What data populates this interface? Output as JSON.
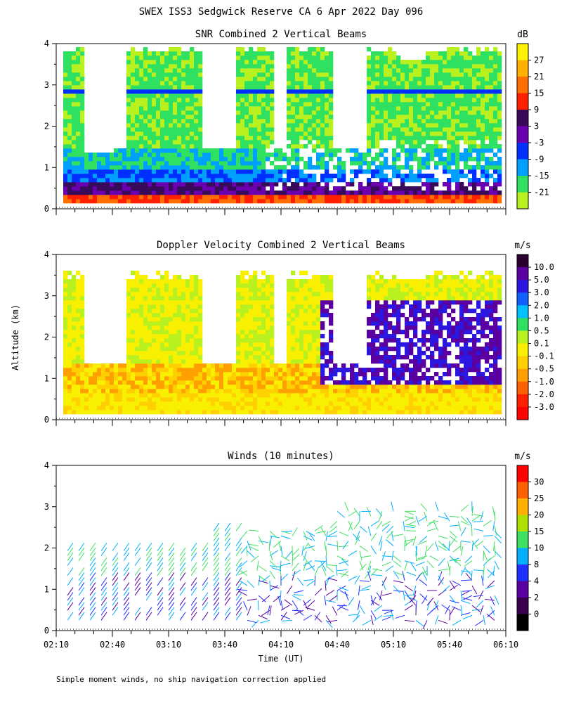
{
  "title": "SWEX ISS3 Sedgwick Reserve CA   6 Apr 2022 Day 096",
  "ylabel_shared": "Altitude (km)",
  "xlabel": "Time (UT)",
  "footnote": "Simple moment winds, no ship navigation correction applied",
  "x_ticks": [
    "02:10",
    "02:40",
    "03:10",
    "03:40",
    "04:10",
    "04:40",
    "05:10",
    "05:40",
    "06:10"
  ],
  "y_ticks": [
    "0",
    "1",
    "2",
    "3",
    "4"
  ],
  "chart_data": [
    {
      "type": "heatmap",
      "title": "SNR Combined 2 Vertical Beams",
      "xlim": [
        "02:10",
        "06:10"
      ],
      "ylim": [
        0,
        4
      ],
      "colorbar": {
        "unit": "dB",
        "labels": [
          "27",
          "21",
          "15",
          "9",
          "3",
          "-3",
          "-9",
          "-15",
          "-21"
        ],
        "colors": [
          "#fff200",
          "#ffb000",
          "#ff6e00",
          "#ff2000",
          "#3a0a5a",
          "#6a00b0",
          "#0030ff",
          "#00a0ff",
          "#30e060",
          "#b8f020"
        ]
      }
    },
    {
      "type": "heatmap",
      "title": "Doppler Velocity Combined 2 Vertical Beams",
      "xlim": [
        "02:10",
        "06:10"
      ],
      "ylim": [
        0,
        4
      ],
      "colorbar": {
        "unit": "m/s",
        "labels": [
          "10.0",
          "5.0",
          "3.0",
          "2.0",
          "1.0",
          "0.5",
          "0.1",
          "-0.1",
          "-0.5",
          "-1.0",
          "-2.0",
          "-3.0"
        ],
        "colors": [
          "#2a0030",
          "#5a00a0",
          "#2a18e0",
          "#1060ff",
          "#00c0ff",
          "#30e060",
          "#b8f020",
          "#f8f000",
          "#ffd000",
          "#ffa000",
          "#ff6000",
          "#ff2000",
          "#ff0000"
        ]
      }
    },
    {
      "type": "scatter",
      "title": "Winds (10 minutes)",
      "xlim": [
        "02:10",
        "06:10"
      ],
      "ylim": [
        0,
        4
      ],
      "colorbar": {
        "unit": "m/s",
        "labels": [
          "30",
          "25",
          "20",
          "15",
          "10",
          "8",
          "4",
          "2",
          "0"
        ],
        "colors": [
          "#ff0000",
          "#ff6000",
          "#ffb000",
          "#b0e000",
          "#40e060",
          "#00b0ff",
          "#2030ff",
          "#5a00a0",
          "#3a0050",
          "#000000"
        ]
      }
    }
  ]
}
